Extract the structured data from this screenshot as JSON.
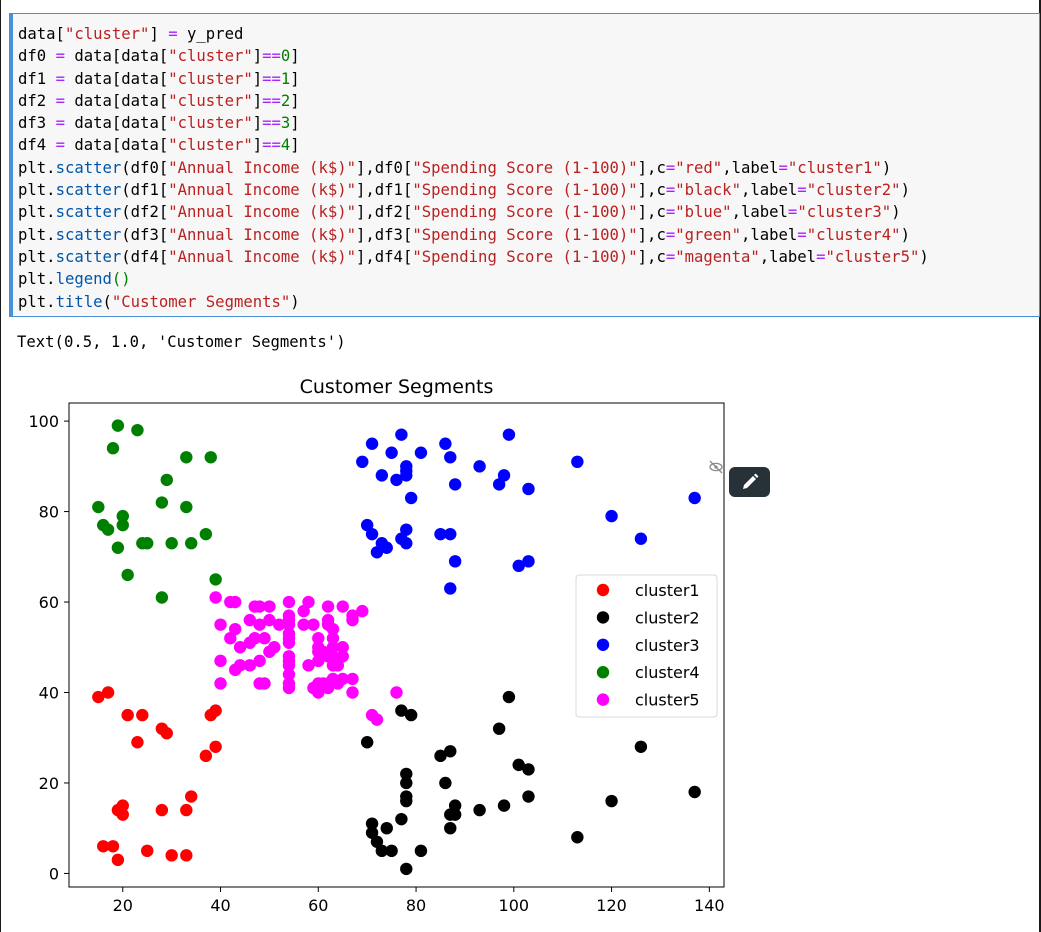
{
  "code_lines": [
    [
      [
        "t",
        "data["
      ],
      [
        "s",
        "\"cluster\""
      ],
      [
        "t",
        "] "
      ],
      [
        "k",
        "="
      ],
      [
        "t",
        " y_pred"
      ]
    ],
    [
      [
        "t",
        "df0 "
      ],
      [
        "k",
        "="
      ],
      [
        "t",
        " data[data["
      ],
      [
        "s",
        "\"cluster\""
      ],
      [
        "t",
        "]"
      ],
      [
        "k",
        "=="
      ],
      [
        "n",
        "0"
      ],
      [
        "t",
        "]"
      ]
    ],
    [
      [
        "t",
        "df1 "
      ],
      [
        "k",
        "="
      ],
      [
        "t",
        " data[data["
      ],
      [
        "s",
        "\"cluster\""
      ],
      [
        "t",
        "]"
      ],
      [
        "k",
        "=="
      ],
      [
        "n",
        "1"
      ],
      [
        "t",
        "]"
      ]
    ],
    [
      [
        "t",
        "df2 "
      ],
      [
        "k",
        "="
      ],
      [
        "t",
        " data[data["
      ],
      [
        "s",
        "\"cluster\""
      ],
      [
        "t",
        "]"
      ],
      [
        "k",
        "=="
      ],
      [
        "n",
        "2"
      ],
      [
        "t",
        "]"
      ]
    ],
    [
      [
        "t",
        "df3 "
      ],
      [
        "k",
        "="
      ],
      [
        "t",
        " data[data["
      ],
      [
        "s",
        "\"cluster\""
      ],
      [
        "t",
        "]"
      ],
      [
        "k",
        "=="
      ],
      [
        "n",
        "3"
      ],
      [
        "t",
        "]"
      ]
    ],
    [
      [
        "t",
        "df4 "
      ],
      [
        "k",
        "="
      ],
      [
        "t",
        " data[data["
      ],
      [
        "s",
        "\"cluster\""
      ],
      [
        "t",
        "]"
      ],
      [
        "k",
        "=="
      ],
      [
        "n",
        "4"
      ],
      [
        "t",
        "]"
      ]
    ],
    [
      [
        "t",
        "plt."
      ],
      [
        "a",
        "scatter"
      ],
      [
        "t",
        "(df0["
      ],
      [
        "s",
        "\"Annual Income (k$)\""
      ],
      [
        "t",
        "],df0["
      ],
      [
        "s",
        "\"Spending Score (1-100)\""
      ],
      [
        "t",
        "],c"
      ],
      [
        "k",
        "="
      ],
      [
        "s",
        "\"red\""
      ],
      [
        "t",
        ",label"
      ],
      [
        "k",
        "="
      ],
      [
        "s",
        "\"cluster1\""
      ],
      [
        "t",
        ")"
      ]
    ],
    [
      [
        "t",
        "plt."
      ],
      [
        "a",
        "scatter"
      ],
      [
        "t",
        "(df1["
      ],
      [
        "s",
        "\"Annual Income (k$)\""
      ],
      [
        "t",
        "],df1["
      ],
      [
        "s",
        "\"Spending Score (1-100)\""
      ],
      [
        "t",
        "],c"
      ],
      [
        "k",
        "="
      ],
      [
        "s",
        "\"black\""
      ],
      [
        "t",
        ",label"
      ],
      [
        "k",
        "="
      ],
      [
        "s",
        "\"cluster2\""
      ],
      [
        "t",
        ")"
      ]
    ],
    [
      [
        "t",
        "plt."
      ],
      [
        "a",
        "scatter"
      ],
      [
        "t",
        "(df2["
      ],
      [
        "s",
        "\"Annual Income (k$)\""
      ],
      [
        "t",
        "],df2["
      ],
      [
        "s",
        "\"Spending Score (1-100)\""
      ],
      [
        "t",
        "],c"
      ],
      [
        "k",
        "="
      ],
      [
        "s",
        "\"blue\""
      ],
      [
        "t",
        ",label"
      ],
      [
        "k",
        "="
      ],
      [
        "s",
        "\"cluster3\""
      ],
      [
        "t",
        ")"
      ]
    ],
    [
      [
        "t",
        "plt."
      ],
      [
        "a",
        "scatter"
      ],
      [
        "t",
        "(df3["
      ],
      [
        "s",
        "\"Annual Income (k$)\""
      ],
      [
        "t",
        "],df3["
      ],
      [
        "s",
        "\"Spending Score (1-100)\""
      ],
      [
        "t",
        "],c"
      ],
      [
        "k",
        "="
      ],
      [
        "s",
        "\"green\""
      ],
      [
        "t",
        ",label"
      ],
      [
        "k",
        "="
      ],
      [
        "s",
        "\"cluster4\""
      ],
      [
        "t",
        ")"
      ]
    ],
    [
      [
        "t",
        "plt."
      ],
      [
        "a",
        "scatter"
      ],
      [
        "t",
        "(df4["
      ],
      [
        "s",
        "\"Annual Income (k$)\""
      ],
      [
        "t",
        "],df4["
      ],
      [
        "s",
        "\"Spending Score (1-100)\""
      ],
      [
        "t",
        "],c"
      ],
      [
        "k",
        "="
      ],
      [
        "s",
        "\"magenta\""
      ],
      [
        "t",
        ",label"
      ],
      [
        "k",
        "="
      ],
      [
        "s",
        "\"cluster5\""
      ],
      [
        "t",
        ")"
      ]
    ],
    [
      [
        "t",
        "plt."
      ],
      [
        "a",
        "legend"
      ],
      [
        "n",
        "()"
      ]
    ],
    [
      [
        "t",
        "plt."
      ],
      [
        "a",
        "title"
      ],
      [
        "t",
        "("
      ],
      [
        "s",
        "\"Customer Segments\""
      ],
      [
        "t",
        ")"
      ]
    ]
  ],
  "output_text": "Text(0.5, 1.0, 'Customer Segments')",
  "icons": {
    "edit": "pencil-icon",
    "hide": "eye-slash-icon"
  },
  "chart_data": {
    "type": "scatter",
    "title": "Customer Segments",
    "xlabel": "",
    "ylabel": "",
    "xlim": [
      9,
      143
    ],
    "ylim": [
      -3,
      104
    ],
    "xticks": [
      20,
      40,
      60,
      80,
      100,
      120,
      140
    ],
    "yticks": [
      0,
      20,
      40,
      60,
      80,
      100
    ],
    "grid": false,
    "legend_position": "center-right",
    "series": [
      {
        "name": "cluster1",
        "color": "#ff0000",
        "points": [
          [
            15,
            39
          ],
          [
            16,
            6
          ],
          [
            17,
            40
          ],
          [
            18,
            6
          ],
          [
            19,
            3
          ],
          [
            19,
            14
          ],
          [
            20,
            15
          ],
          [
            20,
            13
          ],
          [
            21,
            35
          ],
          [
            23,
            29
          ],
          [
            24,
            35
          ],
          [
            25,
            5
          ],
          [
            28,
            14
          ],
          [
            28,
            32
          ],
          [
            29,
            31
          ],
          [
            30,
            4
          ],
          [
            33,
            4
          ],
          [
            33,
            14
          ],
          [
            34,
            17
          ],
          [
            37,
            26
          ],
          [
            38,
            35
          ],
          [
            39,
            36
          ],
          [
            39,
            28
          ]
        ]
      },
      {
        "name": "cluster2",
        "color": "#000000",
        "points": [
          [
            70,
            29
          ],
          [
            71,
            11
          ],
          [
            71,
            9
          ],
          [
            72,
            7
          ],
          [
            73,
            5
          ],
          [
            74,
            10
          ],
          [
            75,
            5
          ],
          [
            77,
            12
          ],
          [
            77,
            36
          ],
          [
            78,
            22
          ],
          [
            78,
            20
          ],
          [
            78,
            17
          ],
          [
            78,
            16
          ],
          [
            78,
            1
          ],
          [
            79,
            35
          ],
          [
            81,
            5
          ],
          [
            85,
            26
          ],
          [
            86,
            20
          ],
          [
            87,
            27
          ],
          [
            87,
            13
          ],
          [
            87,
            10
          ],
          [
            88,
            13
          ],
          [
            88,
            15
          ],
          [
            93,
            14
          ],
          [
            97,
            32
          ],
          [
            98,
            15
          ],
          [
            99,
            39
          ],
          [
            101,
            24
          ],
          [
            103,
            17
          ],
          [
            103,
            23
          ],
          [
            113,
            8
          ],
          [
            120,
            16
          ],
          [
            126,
            28
          ],
          [
            137,
            18
          ]
        ]
      },
      {
        "name": "cluster3",
        "color": "#0000ff",
        "points": [
          [
            69,
            91
          ],
          [
            70,
            77
          ],
          [
            71,
            95
          ],
          [
            71,
            75
          ],
          [
            72,
            71
          ],
          [
            73,
            88
          ],
          [
            73,
            73
          ],
          [
            74,
            72
          ],
          [
            75,
            93
          ],
          [
            76,
            87
          ],
          [
            77,
            97
          ],
          [
            77,
            74
          ],
          [
            78,
            90
          ],
          [
            78,
            88
          ],
          [
            78,
            76
          ],
          [
            78,
            73
          ],
          [
            78,
            89
          ],
          [
            79,
            83
          ],
          [
            81,
            93
          ],
          [
            85,
            75
          ],
          [
            86,
            95
          ],
          [
            87,
            63
          ],
          [
            87,
            75
          ],
          [
            87,
            92
          ],
          [
            88,
            86
          ],
          [
            88,
            69
          ],
          [
            93,
            90
          ],
          [
            97,
            86
          ],
          [
            98,
            88
          ],
          [
            99,
            97
          ],
          [
            101,
            68
          ],
          [
            103,
            85
          ],
          [
            103,
            69
          ],
          [
            113,
            91
          ],
          [
            120,
            79
          ],
          [
            126,
            74
          ],
          [
            137,
            83
          ]
        ]
      },
      {
        "name": "cluster4",
        "color": "#008000",
        "points": [
          [
            15,
            81
          ],
          [
            16,
            77
          ],
          [
            17,
            76
          ],
          [
            18,
            94
          ],
          [
            19,
            72
          ],
          [
            19,
            99
          ],
          [
            20,
            77
          ],
          [
            20,
            79
          ],
          [
            21,
            66
          ],
          [
            23,
            98
          ],
          [
            24,
            73
          ],
          [
            25,
            73
          ],
          [
            28,
            82
          ],
          [
            28,
            61
          ],
          [
            29,
            87
          ],
          [
            30,
            73
          ],
          [
            33,
            81
          ],
          [
            33,
            92
          ],
          [
            34,
            73
          ],
          [
            37,
            75
          ],
          [
            38,
            92
          ],
          [
            39,
            65
          ]
        ]
      },
      {
        "name": "cluster5",
        "color": "#ff00ff",
        "points": [
          [
            39,
            61
          ],
          [
            40,
            47
          ],
          [
            40,
            42
          ],
          [
            40,
            55
          ],
          [
            42,
            52
          ],
          [
            42,
            60
          ],
          [
            43,
            60
          ],
          [
            43,
            54
          ],
          [
            43,
            45
          ],
          [
            44,
            50
          ],
          [
            44,
            46
          ],
          [
            46,
            51
          ],
          [
            46,
            46
          ],
          [
            46,
            56
          ],
          [
            47,
            52
          ],
          [
            47,
            59
          ],
          [
            48,
            55
          ],
          [
            48,
            47
          ],
          [
            48,
            59
          ],
          [
            48,
            42
          ],
          [
            49,
            52
          ],
          [
            49,
            42
          ],
          [
            50,
            59
          ],
          [
            50,
            49
          ],
          [
            50,
            56
          ],
          [
            51,
            50
          ],
          [
            52,
            55
          ],
          [
            54,
            57
          ],
          [
            54,
            47
          ],
          [
            54,
            42
          ],
          [
            54,
            41
          ],
          [
            54,
            46
          ],
          [
            54,
            52
          ],
          [
            54,
            53
          ],
          [
            54,
            44
          ],
          [
            54,
            55
          ],
          [
            54,
            48
          ],
          [
            54,
            51
          ],
          [
            54,
            60
          ],
          [
            54,
            56
          ],
          [
            57,
            58
          ],
          [
            57,
            55
          ],
          [
            58,
            60
          ],
          [
            58,
            46
          ],
          [
            59,
            55
          ],
          [
            59,
            41
          ],
          [
            60,
            49
          ],
          [
            60,
            40
          ],
          [
            60,
            42
          ],
          [
            60,
            52
          ],
          [
            60,
            47
          ],
          [
            60,
            50
          ],
          [
            61,
            42
          ],
          [
            61,
            49
          ],
          [
            62,
            41
          ],
          [
            62,
            48
          ],
          [
            62,
            59
          ],
          [
            62,
            55
          ],
          [
            62,
            56
          ],
          [
            62,
            42
          ],
          [
            63,
            50
          ],
          [
            63,
            46
          ],
          [
            63,
            43
          ],
          [
            63,
            48
          ],
          [
            63,
            52
          ],
          [
            63,
            54
          ],
          [
            64,
            42
          ],
          [
            64,
            46
          ],
          [
            65,
            48
          ],
          [
            65,
            50
          ],
          [
            65,
            43
          ],
          [
            65,
            59
          ],
          [
            67,
            43
          ],
          [
            67,
            57
          ],
          [
            67,
            56
          ],
          [
            67,
            40
          ],
          [
            69,
            58
          ],
          [
            71,
            35
          ],
          [
            72,
            34
          ],
          [
            76,
            40
          ]
        ]
      }
    ]
  }
}
